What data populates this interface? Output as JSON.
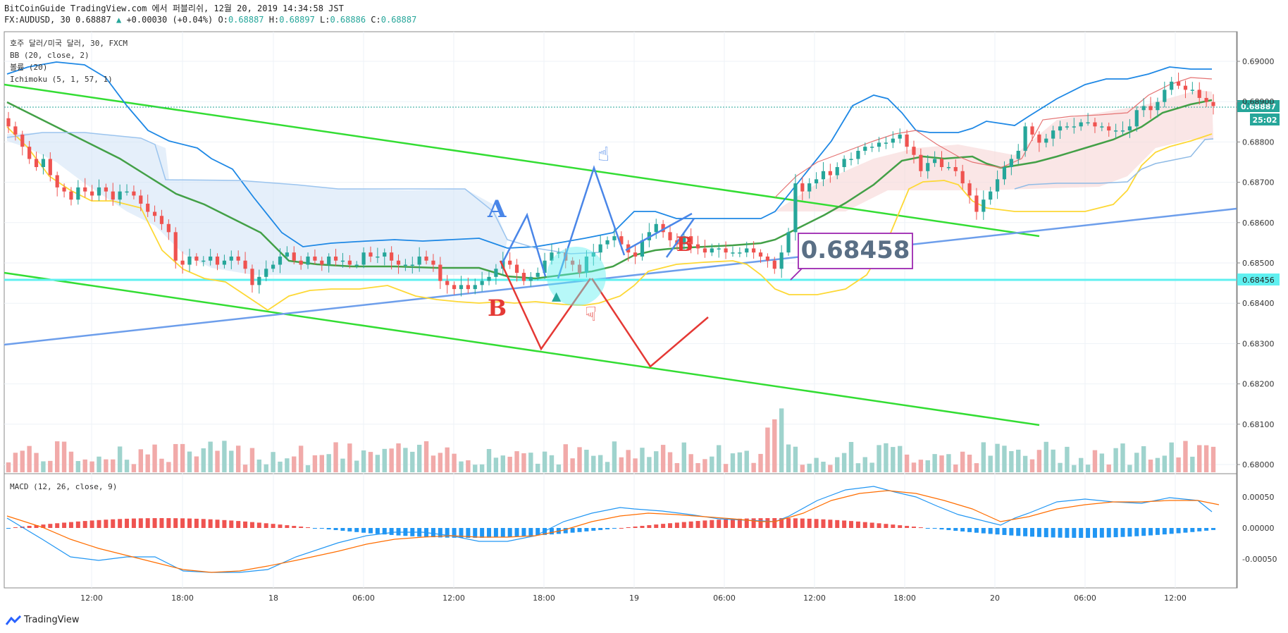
{
  "header": {
    "line1": "BitCoinGuide TradingView.com 에서 퍼블리쉬, 12월 20, 2019 14:34:58 JST",
    "symbol": "FX:AUDUSD, 30",
    "last": "0.68887",
    "change": "+0.00030 (+0.04%)",
    "o_label": "O:",
    "o": "0.68887",
    "h_label": "H:",
    "h": "0.68897",
    "l_label": "L:",
    "l": "0.68886",
    "c_label": "C:",
    "c": "0.68887"
  },
  "legend": {
    "title": "호주 달러/미국 달러, 30, FXCM",
    "bb": "BB (20, close, 2)",
    "vol": "볼륨 (20)",
    "ichimoku": "Ichimoku (5, 1, 57, 1)",
    "macd": "MACD (12, 26, close, 9)"
  },
  "annotations": {
    "price_box": "0.68458",
    "letter_a": "A",
    "letter_b": "B",
    "letter_b2": "B"
  },
  "price_tags": {
    "current": "0.68887",
    "countdown": "25:02",
    "level": "0.68456"
  },
  "footer": {
    "brand": "TradingView"
  },
  "colors": {
    "up": "#26a69a",
    "down": "#ef5350",
    "bb": "#1e88e5",
    "ma": "#43a047",
    "kijun": "#fdd835",
    "trend_green": "#33dd33",
    "trend_blue": "#6d9eeb",
    "level_cyan": "#5ff0f0",
    "macd_line": "#2196f3",
    "signal_line": "#ff6d00"
  },
  "chart_data": {
    "type": "candlestick",
    "y_ticks": [
      "0.69000",
      "0.68900",
      "0.68800",
      "0.68700",
      "0.68600",
      "0.68500",
      "0.68400",
      "0.68300",
      "0.68200",
      "0.68100",
      "0.68000"
    ],
    "x_ticks": [
      "12:00",
      "18:00",
      "18",
      "06:00",
      "12:00",
      "18:00",
      "19",
      "06:00",
      "12:00",
      "18:00",
      "20",
      "06:00",
      "12:00"
    ],
    "macd_ticks": [
      "0.00050",
      "0.00000",
      "-0.00050"
    ],
    "ylim": [
      0.6798,
      0.6908
    ],
    "closes": [
      0.6884,
      0.6882,
      0.6879,
      0.6876,
      0.6874,
      0.6876,
      0.6872,
      0.6869,
      0.6868,
      0.6866,
      0.6869,
      0.6868,
      0.6867,
      0.6869,
      0.6868,
      0.6866,
      0.6868,
      0.6868,
      0.6867,
      0.6865,
      0.6863,
      0.6862,
      0.686,
      0.6858,
      0.6851,
      0.685,
      0.6852,
      0.6851,
      0.6851,
      0.6852,
      0.685,
      0.6851,
      0.6852,
      0.6851,
      0.6849,
      0.6845,
      0.6847,
      0.6849,
      0.685,
      0.6852,
      0.6853,
      0.6851,
      0.685,
      0.6852,
      0.6851,
      0.685,
      0.6852,
      0.6851,
      0.6851,
      0.685,
      0.685,
      0.6853,
      0.6852,
      0.6852,
      0.6853,
      0.6851,
      0.685,
      0.685,
      0.685,
      0.6852,
      0.6851,
      0.685,
      0.6846,
      0.6845,
      0.6844,
      0.6845,
      0.6844,
      0.6845,
      0.6846,
      0.6847,
      0.6849,
      0.6851,
      0.685,
      0.6848,
      0.6846,
      0.6847,
      0.6848,
      0.6851,
      0.6853,
      0.6853,
      0.6851,
      0.685,
      0.6848,
      0.6852,
      0.6853,
      0.6855,
      0.6856,
      0.6857,
      0.6855,
      0.6853,
      0.6852,
      0.6856,
      0.6858,
      0.686,
      0.6858,
      0.6856,
      0.6855,
      0.6857,
      0.6855,
      0.6854,
      0.6853,
      0.6854,
      0.6854,
      0.6853,
      0.6853,
      0.6853,
      0.6854,
      0.6853,
      0.6852,
      0.6851,
      0.6849,
      0.6853,
      0.6858,
      0.687,
      0.6868,
      0.687,
      0.6871,
      0.6873,
      0.6872,
      0.6874,
      0.6876,
      0.6876,
      0.6878,
      0.6879,
      0.6879,
      0.688,
      0.688,
      0.6881,
      0.6882,
      0.6879,
      0.6877,
      0.6873,
      0.6875,
      0.6876,
      0.6874,
      0.6874,
      0.6873,
      0.687,
      0.6867,
      0.6863,
      0.6866,
      0.6868,
      0.6871,
      0.6874,
      0.6876,
      0.6878,
      0.6884,
      0.6882,
      0.688,
      0.6881,
      0.6883,
      0.6884,
      0.6884,
      0.6884,
      0.6885,
      0.6885,
      0.6884,
      0.6884,
      0.6883,
      0.6883,
      0.6883,
      0.6884,
      0.6888,
      0.6889,
      0.6888,
      0.689,
      0.6893,
      0.6895,
      0.6894,
      0.6893,
      0.6893,
      0.6891,
      0.689,
      0.6889
    ],
    "volume_max": 0.0012,
    "macd_ylim": [
      -0.0009,
      0.0008
    ]
  }
}
